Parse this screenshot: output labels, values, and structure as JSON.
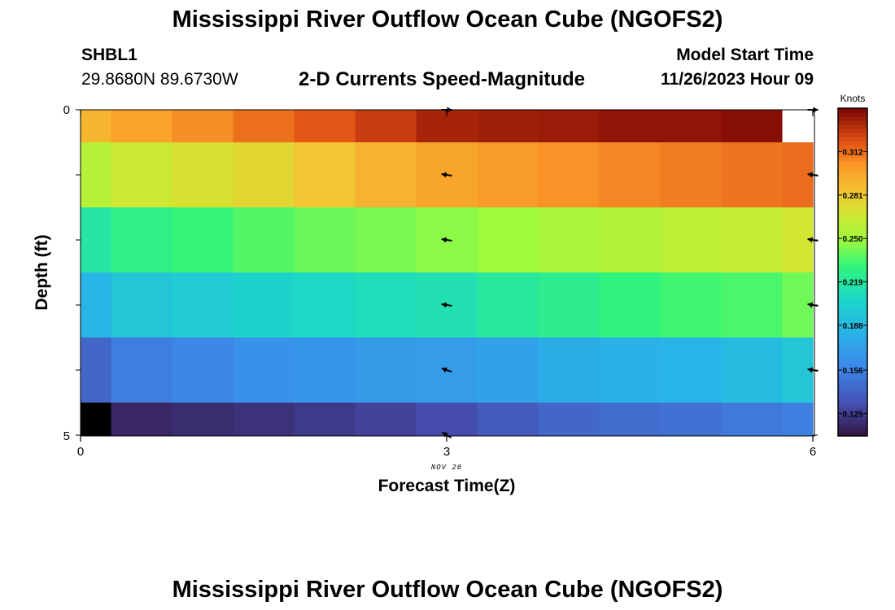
{
  "header": {
    "title": "Mississippi River Outflow Ocean Cube (NGOFS2)",
    "station_id": "SHBL1",
    "station_coords": "29.8680N  89.6730W",
    "subtitle": "2-D Currents Speed-Magnitude",
    "model_start_label": "Model Start Time",
    "model_start_value": "11/26/2023 Hour 09"
  },
  "footer": {
    "title": "Mississippi River Outflow Ocean Cube (NGOFS2)"
  },
  "chart_data": {
    "type": "heatmap",
    "title": "2-D Currents Speed-Magnitude",
    "xlabel": "Forecast Time(Z)",
    "ylabel": "Depth (ft)",
    "x_ticks": [
      "0",
      "3",
      "6"
    ],
    "y_ticks": [
      "0",
      "5"
    ],
    "date_label": "NOV 26",
    "xlim": [
      0,
      6
    ],
    "ylim": [
      0,
      5
    ],
    "colorbar": {
      "label": "Knots",
      "ticks": [
        "0.125",
        "0.156",
        "0.188",
        "0.219",
        "0.250",
        "0.281",
        "0.312"
      ],
      "range": [
        0.109,
        0.343
      ]
    },
    "x": [
      0,
      0.5,
      1,
      1.5,
      2,
      2.5,
      3,
      3.5,
      4,
      4.5,
      5,
      5.5,
      6
    ],
    "depths": [
      0,
      1,
      2,
      3,
      4,
      5
    ],
    "speed_knots": [
      [
        0.29,
        0.298,
        0.305,
        0.312,
        0.318,
        0.325,
        0.333,
        0.335,
        0.336,
        0.338,
        0.338,
        0.34,
        null
      ],
      [
        0.258,
        0.266,
        0.271,
        0.276,
        0.283,
        0.291,
        0.297,
        0.301,
        0.304,
        0.307,
        0.309,
        0.311,
        0.313
      ],
      [
        0.218,
        0.227,
        0.231,
        0.236,
        0.24,
        0.243,
        0.246,
        0.249,
        0.253,
        0.256,
        0.26,
        0.263,
        0.268
      ],
      [
        0.185,
        0.196,
        0.199,
        0.204,
        0.208,
        0.211,
        0.214,
        0.22,
        0.224,
        0.229,
        0.233,
        0.235,
        0.241
      ],
      [
        0.143,
        0.154,
        0.158,
        0.164,
        0.166,
        0.169,
        0.17,
        0.174,
        0.179,
        0.182,
        0.184,
        0.189,
        0.196
      ],
      [
        0.105,
        0.117,
        0.119,
        0.121,
        0.124,
        0.127,
        0.131,
        0.137,
        0.143,
        0.146,
        0.148,
        0.152,
        0.155
      ]
    ],
    "vectors": [
      {
        "x": 3,
        "depth": 0,
        "u": 0.3,
        "v": 0.0
      },
      {
        "x": 3,
        "depth": 1,
        "u": -1,
        "v": 0.15
      },
      {
        "x": 3,
        "depth": 2,
        "u": -1,
        "v": 0.15
      },
      {
        "x": 3,
        "depth": 3,
        "u": -1,
        "v": 0.15
      },
      {
        "x": 3,
        "depth": 4,
        "u": -0.9,
        "v": 0.3
      },
      {
        "x": 3,
        "depth": 5,
        "u": -0.8,
        "v": 0.45
      },
      {
        "x": 6,
        "depth": 0,
        "u": 0.3,
        "v": 0.0
      },
      {
        "x": 6,
        "depth": 1,
        "u": -1,
        "v": 0.15
      },
      {
        "x": 6,
        "depth": 2,
        "u": -1,
        "v": 0.15
      },
      {
        "x": 6,
        "depth": 3,
        "u": -1,
        "v": 0.15
      },
      {
        "x": 6,
        "depth": 4,
        "u": -1,
        "v": 0.15
      }
    ]
  }
}
